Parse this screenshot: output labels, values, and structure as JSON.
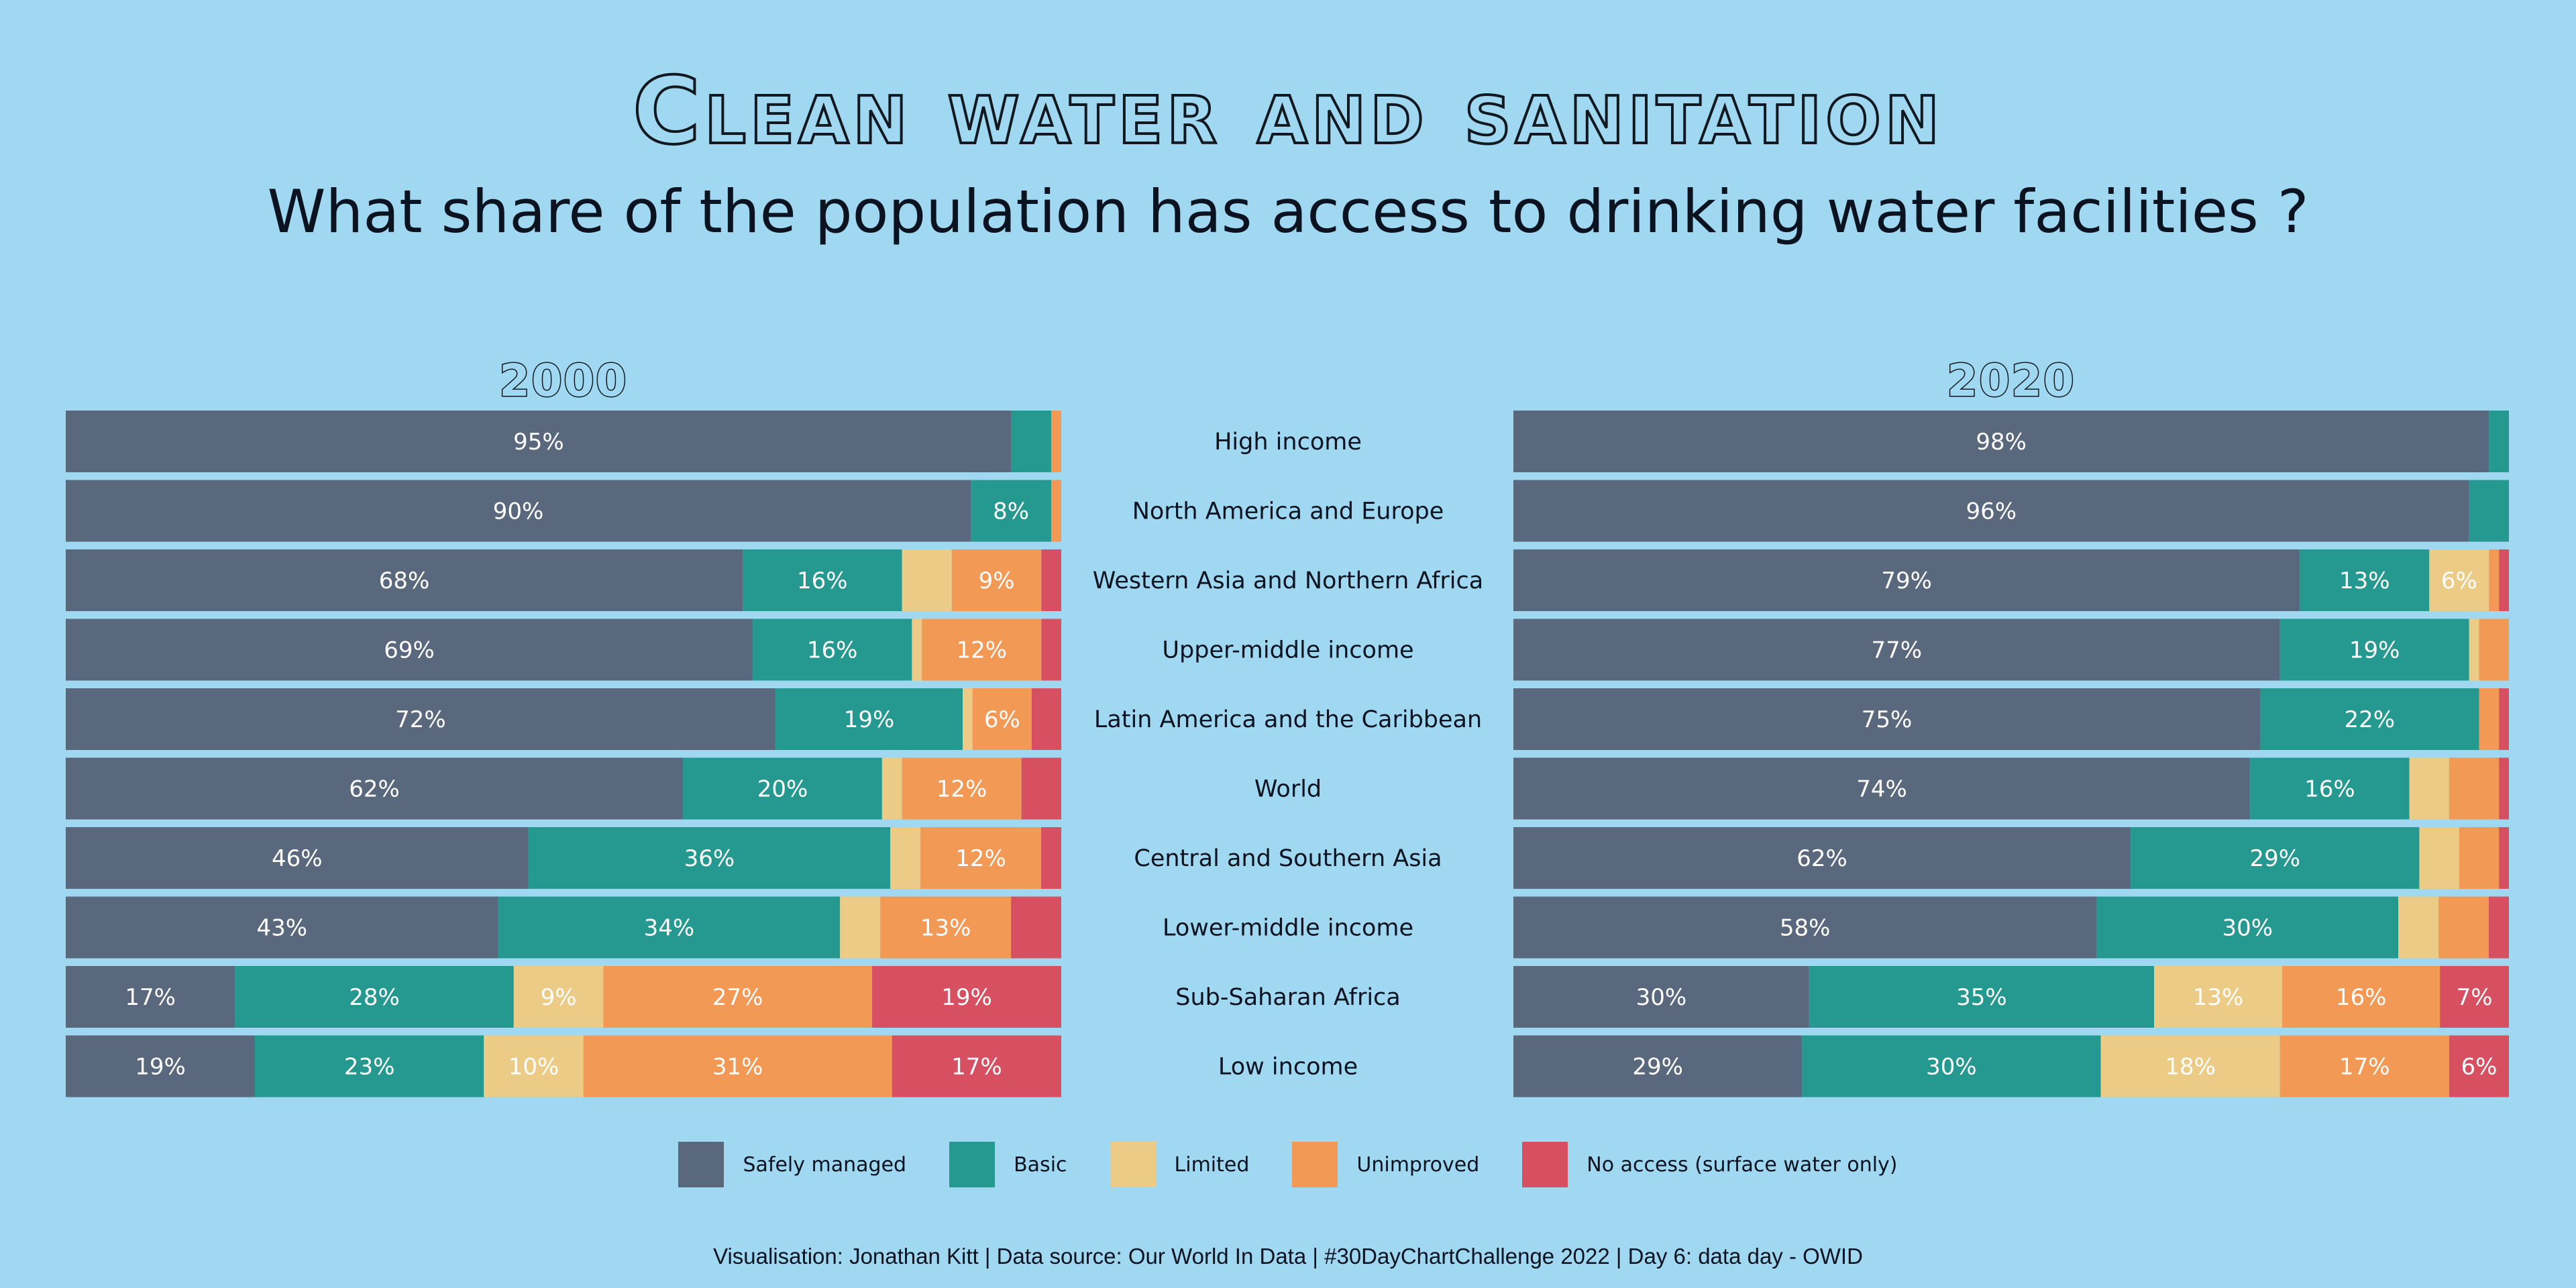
{
  "title": "Clean water and sanitation",
  "subtitle": "What share of the population has access to drinking water facilities ?",
  "caption": "Visualisation: Jonathan Kitt | Data source: Our World In Data | #30DayChartChallenge 2022 | Day 6: data day - OWID",
  "colors": {
    "Safely managed": "#5a687d",
    "Basic": "#259890",
    "Limited": "#ebcb85",
    "Unimproved": "#f39956",
    "No access (surface water only)": "#d65062"
  },
  "legend": [
    {
      "label": "Safely managed",
      "color": "#5a687d"
    },
    {
      "label": "Basic",
      "color": "#259890"
    },
    {
      "label": "Limited",
      "color": "#ebcb85"
    },
    {
      "label": "Unimproved",
      "color": "#f39956"
    },
    {
      "label": "No access (surface water only)",
      "color": "#d65062"
    }
  ],
  "chart_data": {
    "type": "bar",
    "orientation": "horizontal",
    "stacked": true,
    "value_unit": "%",
    "categories": [
      "High income",
      "North America and Europe",
      "Western Asia and Northern Africa",
      "Upper-middle income",
      "Latin America and the Caribbean",
      "World",
      "Central and Southern Asia",
      "Lower-middle income",
      "Sub-Saharan Africa",
      "Low income"
    ],
    "series_names": [
      "Safely managed",
      "Basic",
      "Limited",
      "Unimproved",
      "No access (surface water only)"
    ],
    "panels": [
      {
        "title": "2000",
        "values": [
          [
            95,
            4,
            0,
            1,
            0
          ],
          [
            90,
            8,
            0,
            1,
            0
          ],
          [
            68,
            16,
            5,
            9,
            2
          ],
          [
            69,
            16,
            1,
            12,
            2
          ],
          [
            72,
            19,
            1,
            6,
            3
          ],
          [
            62,
            20,
            2,
            12,
            4
          ],
          [
            46,
            36,
            3,
            12,
            2
          ],
          [
            43,
            34,
            4,
            13,
            5
          ],
          [
            17,
            28,
            9,
            27,
            19
          ],
          [
            19,
            23,
            10,
            31,
            17
          ]
        ]
      },
      {
        "title": "2020",
        "values": [
          [
            98,
            2,
            0,
            0,
            0
          ],
          [
            96,
            4,
            0,
            0,
            0
          ],
          [
            79,
            13,
            6,
            1,
            1
          ],
          [
            77,
            19,
            1,
            3,
            0
          ],
          [
            75,
            22,
            0,
            2,
            1
          ],
          [
            74,
            16,
            4,
            5,
            1
          ],
          [
            62,
            29,
            4,
            4,
            1
          ],
          [
            58,
            30,
            4,
            5,
            2
          ],
          [
            30,
            35,
            13,
            16,
            7
          ],
          [
            29,
            30,
            18,
            17,
            6
          ]
        ]
      }
    ]
  }
}
